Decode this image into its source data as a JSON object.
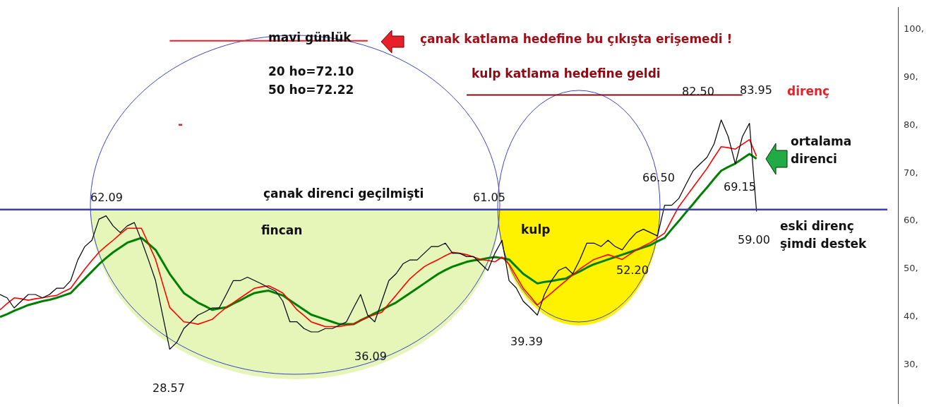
{
  "chart_data": {
    "type": "line",
    "categories": [
      null,
      null,
      null,
      null,
      null,
      null,
      null,
      null,
      null,
      null,
      null,
      null,
      null,
      null,
      null,
      null,
      null,
      null,
      null,
      null,
      null,
      null,
      null,
      null,
      null,
      null,
      null,
      null,
      null,
      null,
      null,
      null,
      null,
      null,
      null,
      null,
      null,
      null,
      null,
      null,
      null,
      null,
      null,
      null,
      null,
      null,
      null,
      null,
      null,
      null,
      null,
      null,
      null,
      null,
      null,
      null,
      null,
      null,
      null,
      null,
      null,
      null,
      null,
      null,
      null,
      null,
      null,
      null,
      null,
      null,
      null,
      null,
      null,
      null,
      null,
      null,
      null,
      null,
      null,
      null,
      null,
      null,
      null,
      null,
      null,
      null,
      null,
      null,
      null,
      null,
      null,
      null,
      null,
      null,
      null,
      null,
      null,
      null,
      null,
      null,
      null,
      null,
      null,
      null,
      null,
      null,
      null,
      null,
      null,
      null,
      null,
      null,
      null,
      null,
      null,
      null,
      null,
      null,
      null,
      null,
      null,
      null,
      null,
      null,
      null,
      null,
      null,
      null
    ],
    "series": [
      {
        "color": "#000000",
        "values": [
          44.7,
          44,
          41.9,
          43.3,
          44.7,
          44.7,
          44,
          44.7,
          46,
          46,
          47.6,
          51.9,
          54.7,
          56,
          60.4,
          61.1,
          59,
          57.6,
          59,
          59.7,
          56,
          51.9,
          47.6,
          40.4,
          33.3,
          34.7,
          37.6,
          39,
          40.4,
          41.1,
          41.9,
          41.9,
          44.7,
          47.6,
          47.6,
          48.3,
          47.6,
          46.9,
          46.1,
          45.4,
          43.3,
          39,
          39,
          37.6,
          36.9,
          36.9,
          37.6,
          37.6,
          38.3,
          39,
          41.9,
          44.7,
          40.4,
          39,
          43.3,
          47.6,
          49,
          51.1,
          51.9,
          51.9,
          53.3,
          54.7,
          54.7,
          55.4,
          53.3,
          53.3,
          52.6,
          52.6,
          51.1,
          49.7,
          53.3,
          56,
          47.6,
          46.1,
          43.3,
          41.9,
          40.4,
          44.7,
          47.6,
          49.7,
          50.4,
          49,
          51.9,
          55.4,
          55.4,
          54.7,
          56,
          54.7,
          54,
          56,
          57.6,
          58.3,
          57.6,
          56.9,
          63.3,
          63.3,
          64.7,
          67.6,
          70.4,
          71.9,
          73.3,
          76.1,
          81.1,
          77.6,
          71.9,
          77.6,
          80.4,
          62,
          null,
          null,
          null,
          null,
          null,
          null,
          null,
          null,
          null,
          null,
          null,
          null,
          null,
          null,
          null,
          null,
          null,
          null,
          null,
          null
        ]
      },
      {
        "color": "#ff0000",
        "values": [
          41.5,
          42.8,
          44,
          43.8,
          43.5,
          43.8,
          44,
          44.3,
          44.5,
          45.3,
          46,
          48,
          50,
          51.8,
          53.5,
          54.8,
          56,
          57.3,
          58.5,
          58.5,
          58.5,
          55.3,
          52,
          47,
          42,
          40.5,
          39,
          38.8,
          38.5,
          39,
          39.5,
          40.8,
          42,
          43,
          44,
          45,
          46,
          46.3,
          46.5,
          45.8,
          45,
          43.3,
          41.5,
          40.3,
          39,
          38.5,
          38,
          38,
          38,
          38.3,
          38.5,
          39.3,
          40,
          40.5,
          41,
          42.8,
          44.5,
          46.3,
          48,
          49.3,
          50.5,
          51.3,
          52,
          52.8,
          53.5,
          53.3,
          53,
          52.5,
          52,
          51.8,
          51.5,
          52.5,
          51,
          48.5,
          46,
          44.3,
          42.5,
          43.8,
          45,
          46.3,
          47.5,
          48.8,
          50,
          51,
          52,
          52.5,
          53,
          52.5,
          52,
          53,
          54,
          54.8,
          55.5,
          56.5,
          57.5,
          60.3,
          63,
          65,
          67,
          69,
          71,
          73.3,
          75.5,
          75.3,
          75,
          76,
          77,
          73.5,
          null,
          null,
          null,
          null,
          null,
          null,
          null,
          null,
          null,
          null,
          null,
          null,
          null,
          null,
          null,
          null,
          null,
          null,
          null,
          null
        ]
      },
      {
        "color": "#008000",
        "values": [
          40,
          40.6,
          41.3,
          41.9,
          42.5,
          42.9,
          43.3,
          43.6,
          44,
          44.5,
          45,
          46.5,
          48,
          49.5,
          51,
          52.3,
          53.5,
          54.5,
          55.5,
          56,
          56.5,
          55.3,
          54,
          51.5,
          49,
          47,
          45,
          44,
          43,
          42.3,
          41.5,
          41.8,
          42,
          42.8,
          43.5,
          44.3,
          45,
          45.3,
          45.5,
          45,
          44.5,
          43.5,
          42.5,
          41.5,
          40.5,
          40,
          39.5,
          39,
          38.5,
          38.5,
          38.5,
          39.3,
          40,
          40.8,
          41.5,
          42.3,
          43,
          44,
          45,
          46,
          47,
          48,
          49,
          49.8,
          50.5,
          51,
          51.5,
          51.8,
          52,
          52.3,
          52.5,
          52.3,
          52,
          50.5,
          49,
          48,
          47,
          47.3,
          47.5,
          47.8,
          48,
          48.8,
          49.5,
          50.3,
          51,
          51.5,
          52,
          52.5,
          53,
          53.5,
          54,
          54.5,
          55,
          55.8,
          56.5,
          58.3,
          60,
          61.8,
          63.5,
          65.3,
          67,
          68.8,
          70.5,
          71.3,
          72,
          73,
          74,
          73,
          null,
          null,
          null,
          null,
          null,
          null,
          null,
          null,
          null,
          null,
          null,
          null,
          null,
          null,
          null,
          null,
          null,
          null,
          null,
          null
        ]
      },
      {
        "color": "#e8202a",
        "values": [
          null,
          null,
          null,
          null,
          null,
          null,
          null,
          null,
          null,
          null,
          null,
          null,
          null,
          null,
          null,
          null,
          null,
          null,
          null,
          null,
          null,
          null,
          null,
          null,
          97.6,
          null,
          null,
          null,
          null,
          null,
          null,
          null,
          null,
          null,
          null,
          null,
          null,
          null,
          null,
          null,
          null,
          null,
          null,
          null,
          null,
          null,
          null,
          null,
          null,
          null,
          null,
          null,
          97.6,
          null,
          null,
          null,
          null,
          null,
          null,
          null,
          null,
          null,
          null,
          null,
          null,
          null,
          null,
          null,
          null,
          null,
          null,
          null,
          null,
          null,
          null,
          null,
          null,
          null,
          null,
          null,
          null,
          null,
          null,
          null,
          null,
          null,
          null,
          null,
          null,
          null,
          null,
          null,
          null,
          null,
          null,
          null,
          null,
          null,
          null,
          null,
          null,
          null,
          null,
          null,
          null,
          null,
          null,
          null,
          null,
          null,
          null,
          null,
          null,
          null,
          null,
          null,
          null,
          null,
          null,
          null,
          null,
          null,
          null,
          null,
          null,
          null,
          null,
          null
        ]
      },
      {
        "color": "#8b0a14",
        "values": [
          null,
          null,
          null,
          null,
          null,
          null,
          null,
          null,
          null,
          null,
          null,
          null,
          null,
          null,
          null,
          null,
          null,
          null,
          null,
          null,
          null,
          null,
          null,
          null,
          null,
          null,
          null,
          null,
          null,
          null,
          null,
          null,
          null,
          null,
          null,
          null,
          null,
          null,
          null,
          null,
          null,
          null,
          null,
          null,
          null,
          null,
          null,
          null,
          null,
          null,
          null,
          null,
          null,
          null,
          null,
          null,
          null,
          null,
          null,
          null,
          null,
          null,
          null,
          null,
          null,
          null,
          86.3,
          null,
          null,
          null,
          null,
          null,
          null,
          null,
          null,
          null,
          null,
          null,
          null,
          null,
          null,
          null,
          null,
          null,
          null,
          null,
          null,
          null,
          null,
          null,
          null,
          null,
          null,
          null,
          null,
          null,
          null,
          null,
          null,
          null,
          null,
          null,
          null,
          null,
          null,
          86.3,
          null,
          null,
          null,
          null,
          null,
          null,
          null,
          null,
          null,
          null,
          null,
          null,
          null,
          null,
          null,
          null,
          null,
          null,
          null,
          null,
          null,
          null
        ]
      }
    ],
    "ylim": [
      22,
      104.5
    ],
    "yticks": [
      {
        "value": 30,
        "label": "30,"
      },
      {
        "value": 40,
        "label": "40,"
      },
      {
        "value": 50,
        "label": "50,"
      },
      {
        "value": 60,
        "label": "60,"
      },
      {
        "value": 70,
        "label": "70,"
      },
      {
        "value": 80,
        "label": "80,"
      },
      {
        "value": 90,
        "label": "90,"
      },
      {
        "value": 100,
        "label": "100,"
      }
    ],
    "tick_labels": "y",
    "marker": "none",
    "line_style": "solid",
    "ref_lines": [
      {
        "axis": "y",
        "value": 62.4,
        "color": "#3a3fb0"
      }
    ],
    "annotations": [
      "mavi günlük",
      "çanak katlama hedefine bu çıkışta erişemedi !",
      "20 ho=72.10",
      "50 ho=72.22",
      "-",
      "kulp katlama hedefine geldi",
      "82.50",
      "83.95",
      "direnç",
      "ortalama",
      "direnci",
      "66.50",
      "69.15",
      "62.09",
      "çanak direnci geçilmişti",
      "61.05",
      "fincan",
      "kulp",
      "eski direnç",
      "şimdi destek",
      "59.00",
      "52.20",
      "39.39",
      "36.09",
      "28.57"
    ]
  }
}
